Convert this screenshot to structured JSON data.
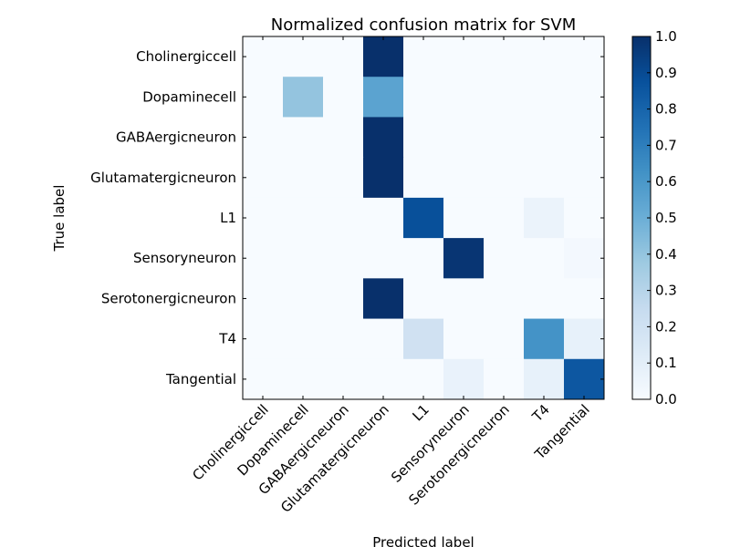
{
  "chart_data": {
    "type": "heatmap",
    "title": "Normalized confusion matrix for SVM",
    "xlabel": "Predicted label",
    "ylabel": "True label",
    "row_labels": [
      "Cholinergiccell",
      "Dopaminecell",
      "GABAergicneuron",
      "Glutamatergicneuron",
      "L1",
      "Sensoryneuron",
      "Serotonergicneuron",
      "T4",
      "Tangential"
    ],
    "col_labels": [
      "Cholinergiccell",
      "Dopaminecell",
      "GABAergicneuron",
      "Glutamatergicneuron",
      "L1",
      "Sensoryneuron",
      "Serotonergicneuron",
      "T4",
      "Tangential"
    ],
    "values": [
      [
        0,
        0,
        0,
        1.0,
        0,
        0,
        0,
        0,
        0
      ],
      [
        0,
        0.4,
        0,
        0.55,
        0,
        0,
        0,
        0,
        0
      ],
      [
        0,
        0,
        0,
        1.0,
        0,
        0,
        0,
        0,
        0
      ],
      [
        0,
        0,
        0,
        1.0,
        0,
        0,
        0,
        0,
        0
      ],
      [
        0,
        0,
        0,
        0,
        0.88,
        0,
        0,
        0.06,
        0
      ],
      [
        0,
        0,
        0,
        0,
        0,
        0.98,
        0,
        0,
        0.02
      ],
      [
        0,
        0,
        0,
        1.0,
        0,
        0,
        0,
        0,
        0
      ],
      [
        0,
        0,
        0,
        0,
        0.2,
        0,
        0,
        0.62,
        0.08
      ],
      [
        0,
        0,
        0,
        0,
        0,
        0.07,
        0,
        0.08,
        0.85
      ]
    ],
    "vmin": 0,
    "vmax": 1,
    "colormap": "Blues",
    "colorbar_ticks": [
      "0.0",
      "0.1",
      "0.2",
      "0.3",
      "0.4",
      "0.5",
      "0.6",
      "0.7",
      "0.8",
      "0.9",
      "1.0"
    ]
  }
}
